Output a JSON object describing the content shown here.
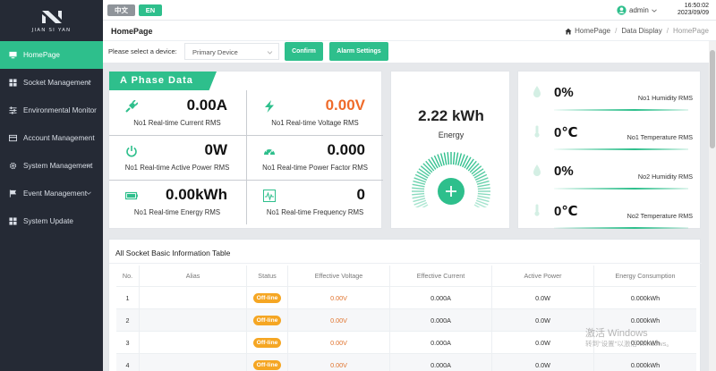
{
  "logo": {
    "text": "JIAN SI YAN"
  },
  "sidebar": {
    "items": [
      {
        "label": "HomePage",
        "icon": "monitor-icon",
        "active": true,
        "has_children": false
      },
      {
        "label": "Socket Management",
        "icon": "grid-icon",
        "has_children": true
      },
      {
        "label": "Environmental Monitor",
        "icon": "sliders-icon",
        "has_children": false
      },
      {
        "label": "Account Management",
        "icon": "card-icon",
        "has_children": false
      },
      {
        "label": "System Management",
        "icon": "gear-icon",
        "has_children": true
      },
      {
        "label": "Event Management",
        "icon": "flag-icon",
        "has_children": true
      },
      {
        "label": "System Update",
        "icon": "grid-icon",
        "has_children": false
      }
    ]
  },
  "header": {
    "lang_cn": "中文",
    "lang_en": "EN",
    "user": "admin",
    "time": "16:50:02",
    "date": "2023/09/09"
  },
  "titlebar": {
    "title": "HomePage",
    "breadcrumb": [
      "HomePage",
      "Data Display",
      "HomePage"
    ]
  },
  "device": {
    "label": "Please select a device:",
    "selected": "Primary Device",
    "confirm_label": "Confirm",
    "alarm_label": "Alarm Settings"
  },
  "phase": {
    "title": "A Phase Data",
    "current": {
      "value": "0.00A",
      "label": "No1 Real-time Current RMS"
    },
    "voltage": {
      "value": "0.00V",
      "label": "No1 Real-time Voltage RMS"
    },
    "active_power": {
      "value": "0W",
      "label": "No1 Real-time Active Power RMS"
    },
    "power_factor": {
      "value": "0.000",
      "label": "No1 Real-time Power Factor RMS"
    },
    "energy": {
      "value": "0.00kWh",
      "label": "No1 Real-time Energy RMS"
    },
    "frequency": {
      "value": "0",
      "label": "No1 Real-time Frequency RMS"
    }
  },
  "energy_card": {
    "value": "2.22 kWh",
    "label": "Energy"
  },
  "env": [
    {
      "value": "0%",
      "label": "No1 Humidity RMS",
      "icon": "droplet-icon"
    },
    {
      "value": "0℃",
      "label": "No1 Temperature RMS",
      "icon": "thermometer-icon"
    },
    {
      "value": "0%",
      "label": "No2 Humidity RMS",
      "icon": "droplet-icon"
    },
    {
      "value": "0℃",
      "label": "No2 Temperature RMS",
      "icon": "thermometer-icon"
    }
  ],
  "table": {
    "title": "All Socket Basic Information Table",
    "columns": [
      "No.",
      "Alias",
      "Status",
      "Effective Voltage",
      "Effective Current",
      "Active Power",
      "Energy Consumption"
    ],
    "rows": [
      {
        "no": "1",
        "alias": "",
        "status": "Off-line",
        "voltage": "0.00V",
        "current": "0.000A",
        "power": "0.0W",
        "energy": "0.000kWh"
      },
      {
        "no": "2",
        "alias": "",
        "status": "Off-line",
        "voltage": "0.00V",
        "current": "0.000A",
        "power": "0.0W",
        "energy": "0.000kWh"
      },
      {
        "no": "3",
        "alias": "",
        "status": "Off-line",
        "voltage": "0.00V",
        "current": "0.000A",
        "power": "0.0W",
        "energy": "0.000kWh"
      },
      {
        "no": "4",
        "alias": "",
        "status": "Off-line",
        "voltage": "0.00V",
        "current": "0.000A",
        "power": "0.0W",
        "energy": "0.000kWh"
      }
    ]
  },
  "watermark": {
    "line1": "激活 Windows",
    "line2": "转到\"设置\"以激活 Windows。"
  },
  "colors": {
    "accent": "#2ebf8c",
    "sidebar": "#252a35",
    "warning": "#f5a623",
    "voltage": "#ef6b2a"
  }
}
